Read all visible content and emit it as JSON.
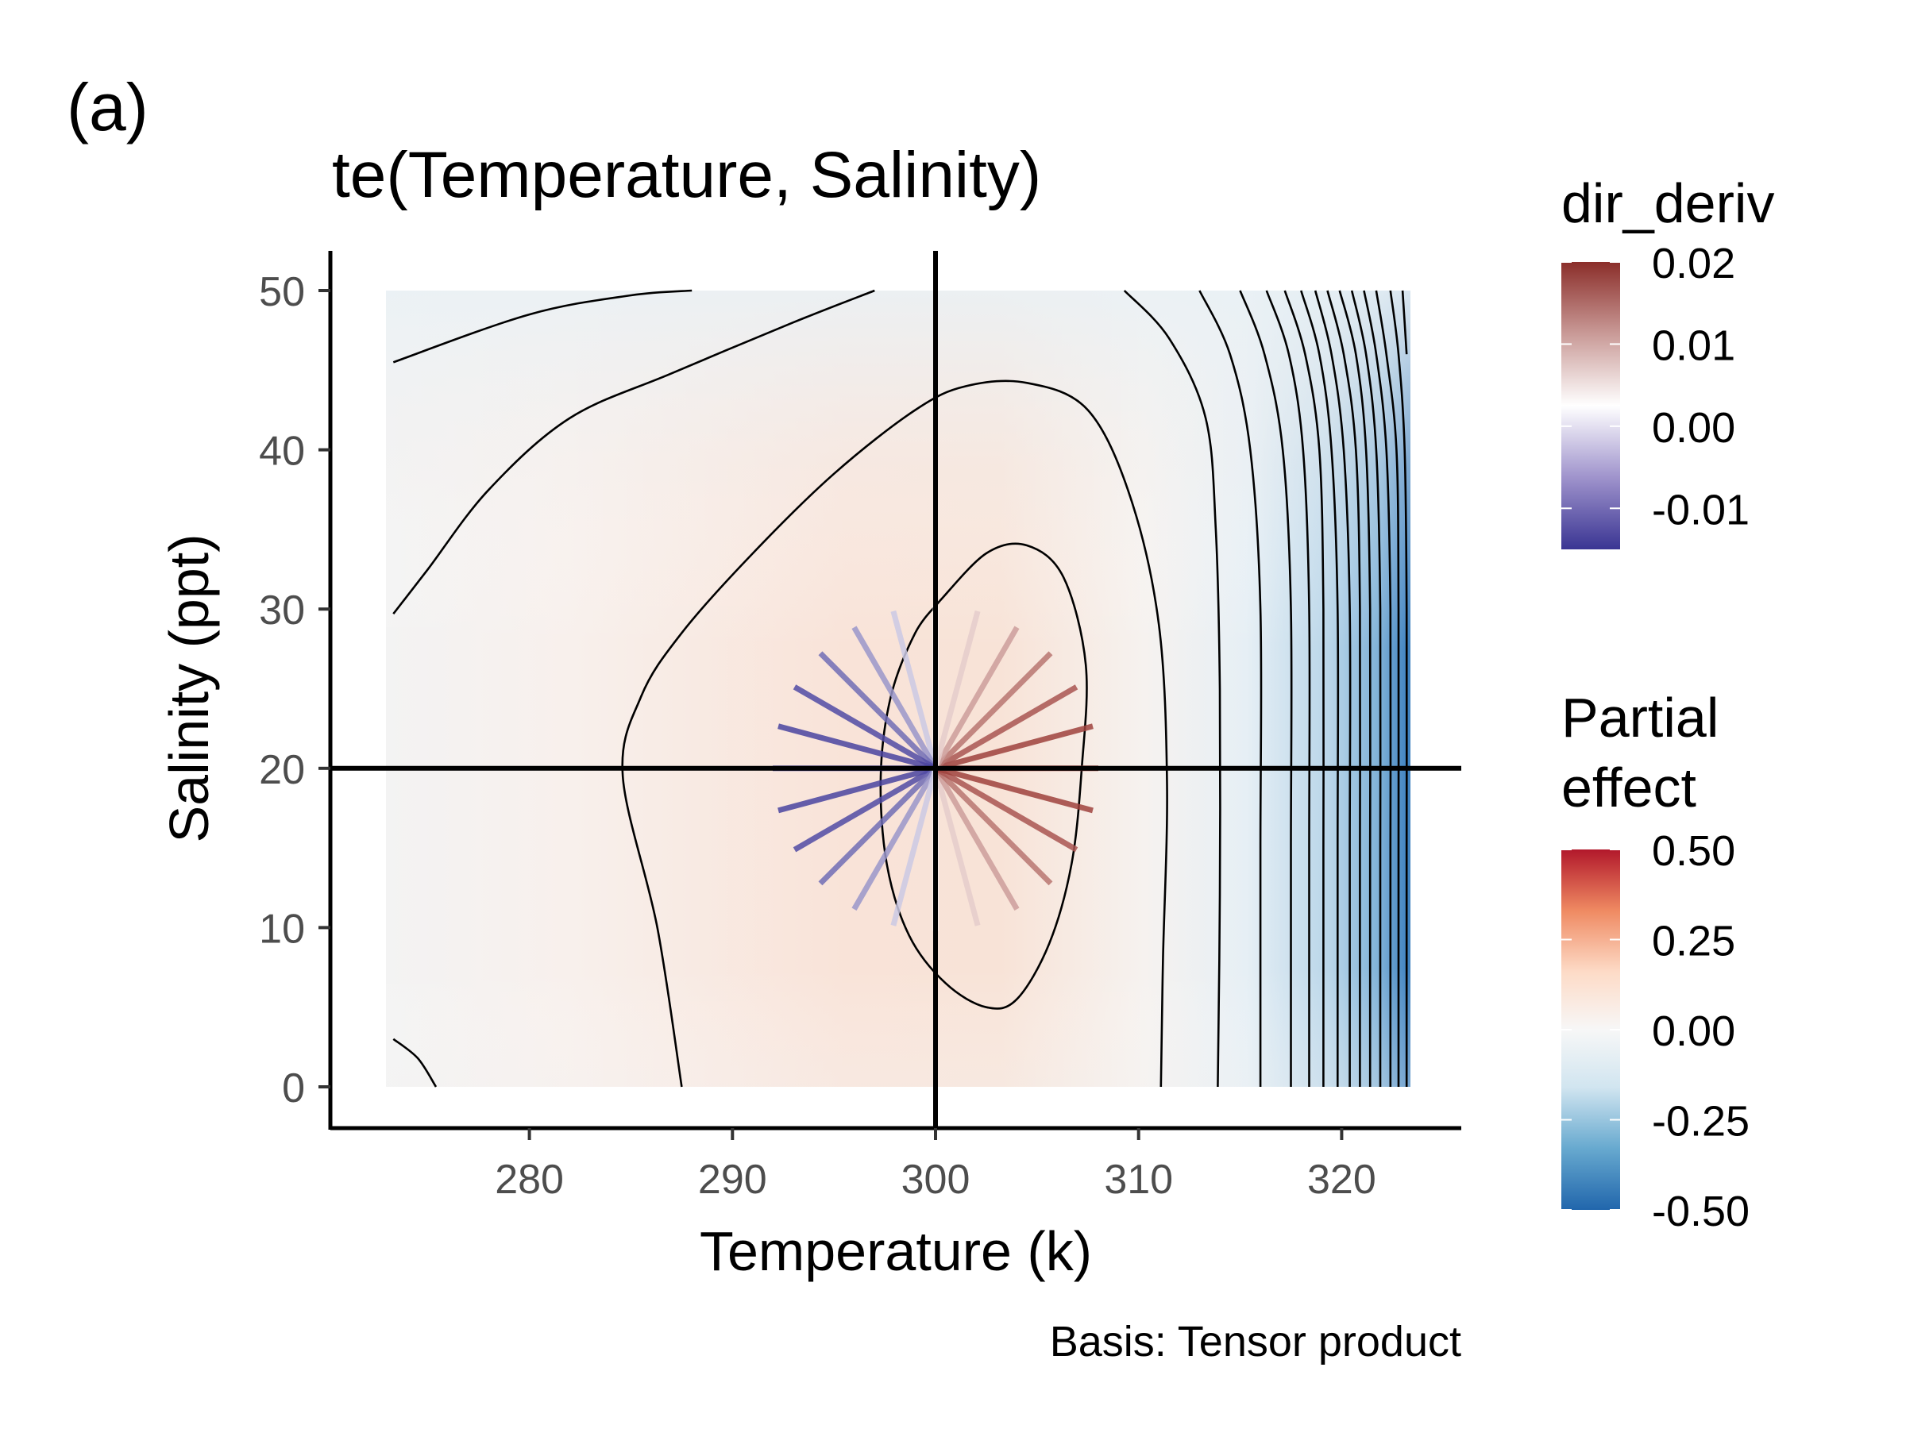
{
  "panel_tag": "(a)",
  "chart_data": {
    "type": "heatmap",
    "title": "te(Temperature, Salinity)",
    "xlabel": "Temperature (k)",
    "ylabel": "Salinity (ppt)",
    "caption": "Basis: Tensor product",
    "xlim": [
      273,
      323.5
    ],
    "ylim": [
      0,
      50
    ],
    "x_ticks": [
      "280",
      "290",
      "300",
      "310",
      "320"
    ],
    "y_ticks": [
      "0",
      "10",
      "20",
      "30",
      "40",
      "50"
    ],
    "reference_point": {
      "temperature": 300,
      "salinity": 20
    },
    "grid": false,
    "partial_effect_legend": {
      "title_line1": "Partial",
      "title_line2": "effect",
      "labels": [
        "0.50",
        "0.25",
        "0.00",
        "-0.25",
        "-0.50"
      ],
      "colors": [
        "#b2182b",
        "#ef8a62",
        "#fddbc7",
        "#f7f7f7",
        "#d1e5f0",
        "#67a9cf",
        "#2166ac"
      ],
      "range": [
        -0.5,
        0.5
      ]
    },
    "dir_deriv_legend": {
      "title": "dir_deriv",
      "labels": [
        "0.02",
        "0.01",
        "0.00",
        "-0.01"
      ],
      "colors": [
        "#8b2e2a",
        "#c99a97",
        "#ffffff",
        "#9f93cc",
        "#3a3593"
      ],
      "range": [
        -0.015,
        0.02
      ]
    },
    "directional_derivatives": [
      {
        "angle_deg": 0,
        "value": 0.02
      },
      {
        "angle_deg": 15,
        "value": 0.0193
      },
      {
        "angle_deg": 30,
        "value": 0.0173
      },
      {
        "angle_deg": 45,
        "value": 0.0141
      },
      {
        "angle_deg": 60,
        "value": 0.01
      },
      {
        "angle_deg": 75,
        "value": 0.0052
      },
      {
        "angle_deg": 90,
        "value": 0.0
      },
      {
        "angle_deg": 105,
        "value": -0.0052
      },
      {
        "angle_deg": 120,
        "value": -0.01
      },
      {
        "angle_deg": 135,
        "value": -0.0141
      },
      {
        "angle_deg": 150,
        "value": -0.0173
      },
      {
        "angle_deg": 165,
        "value": -0.0193
      },
      {
        "angle_deg": 180,
        "value": -0.02
      },
      {
        "angle_deg": 195,
        "value": -0.0193
      },
      {
        "angle_deg": 210,
        "value": -0.0173
      },
      {
        "angle_deg": 225,
        "value": -0.0141
      },
      {
        "angle_deg": 240,
        "value": -0.01
      },
      {
        "angle_deg": 255,
        "value": -0.0052
      },
      {
        "angle_deg": 270,
        "value": 0.0
      },
      {
        "angle_deg": 285,
        "value": 0.0052
      },
      {
        "angle_deg": 300,
        "value": 0.01
      },
      {
        "angle_deg": 315,
        "value": 0.0141
      },
      {
        "angle_deg": 330,
        "value": 0.0173
      },
      {
        "angle_deg": 345,
        "value": 0.0193
      }
    ],
    "contours": [
      {
        "points": [
          [
            273.3,
            45.5
          ],
          [
            280,
            48.5
          ],
          [
            285,
            49.7
          ],
          [
            288,
            50
          ]
        ]
      },
      {
        "points": [
          [
            297,
            50
          ],
          [
            293,
            48
          ],
          [
            287,
            44.8
          ],
          [
            282,
            42
          ],
          [
            278,
            37.5
          ],
          [
            275,
            32.5
          ],
          [
            273.3,
            29.7
          ]
        ]
      },
      {
        "points": [
          [
            273.3,
            3
          ],
          [
            274.5,
            1.8
          ],
          [
            275.4,
            0
          ]
        ]
      },
      {
        "points": [
          [
            287.5,
            0
          ],
          [
            286.3,
            10
          ],
          [
            284.6,
            19.5
          ],
          [
            285.5,
            24.5
          ],
          [
            287.5,
            28.5
          ],
          [
            291,
            33.5
          ],
          [
            295,
            38.5
          ],
          [
            299,
            42.5
          ],
          [
            301.5,
            44
          ],
          [
            304.5,
            44.2
          ],
          [
            307.5,
            42.5
          ],
          [
            309.6,
            37
          ],
          [
            311,
            29
          ],
          [
            311.4,
            19
          ],
          [
            311.2,
            8
          ],
          [
            311.1,
            0
          ]
        ]
      },
      {
        "points": [
          [
            300.2,
            30.5
          ],
          [
            302.5,
            33.5
          ],
          [
            304.5,
            34
          ],
          [
            306.3,
            32
          ],
          [
            307.4,
            26.5
          ],
          [
            307.2,
            20
          ],
          [
            306.7,
            14
          ],
          [
            305.6,
            9
          ],
          [
            304,
            5.5
          ],
          [
            302.5,
            5
          ],
          [
            300.5,
            6.5
          ],
          [
            298.7,
            9.5
          ],
          [
            297.6,
            14
          ],
          [
            297.3,
            19.5
          ],
          [
            297.8,
            24.5
          ],
          [
            299,
            28.5
          ],
          [
            300.2,
            30.5
          ]
        ]
      },
      {
        "points": [
          [
            309.3,
            50
          ],
          [
            311.5,
            47
          ],
          [
            313.3,
            42
          ],
          [
            313.8,
            35
          ],
          [
            314,
            25
          ],
          [
            314,
            12
          ],
          [
            313.9,
            0
          ]
        ]
      },
      {
        "points": [
          [
            313,
            50
          ],
          [
            314.5,
            46
          ],
          [
            315.5,
            40
          ],
          [
            316,
            30
          ],
          [
            316,
            15
          ],
          [
            316,
            0
          ]
        ]
      },
      {
        "points": [
          [
            315,
            50
          ],
          [
            316.2,
            46
          ],
          [
            317.1,
            40
          ],
          [
            317.5,
            30
          ],
          [
            317.5,
            15
          ],
          [
            317.5,
            0
          ]
        ]
      },
      {
        "points": [
          [
            316.3,
            50
          ],
          [
            317.4,
            46
          ],
          [
            318.1,
            40
          ],
          [
            318.4,
            30
          ],
          [
            318.4,
            15
          ],
          [
            318.4,
            0
          ]
        ]
      },
      {
        "points": [
          [
            317.2,
            50
          ],
          [
            318.2,
            46
          ],
          [
            318.9,
            40
          ],
          [
            319.1,
            30
          ],
          [
            319.1,
            15
          ],
          [
            319.1,
            0
          ]
        ]
      },
      {
        "points": [
          [
            318,
            50
          ],
          [
            318.9,
            46
          ],
          [
            319.5,
            40
          ],
          [
            319.8,
            30
          ],
          [
            319.8,
            15
          ],
          [
            319.8,
            0
          ]
        ]
      },
      {
        "points": [
          [
            318.7,
            50
          ],
          [
            319.5,
            46
          ],
          [
            320.1,
            40
          ],
          [
            320.4,
            30
          ],
          [
            320.4,
            15
          ],
          [
            320.4,
            0
          ]
        ]
      },
      {
        "points": [
          [
            319.3,
            50
          ],
          [
            320.1,
            46
          ],
          [
            320.7,
            40
          ],
          [
            320.9,
            30
          ],
          [
            320.9,
            15
          ],
          [
            320.9,
            0
          ]
        ]
      },
      {
        "points": [
          [
            319.9,
            50
          ],
          [
            320.7,
            46
          ],
          [
            321.2,
            40
          ],
          [
            321.4,
            30
          ],
          [
            321.4,
            15
          ],
          [
            321.4,
            0
          ]
        ]
      },
      {
        "points": [
          [
            320.5,
            50
          ],
          [
            321.2,
            46
          ],
          [
            321.7,
            40
          ],
          [
            321.9,
            30
          ],
          [
            321.9,
            15
          ],
          [
            321.9,
            0
          ]
        ]
      },
      {
        "points": [
          [
            321.1,
            50
          ],
          [
            321.7,
            46
          ],
          [
            322.2,
            40
          ],
          [
            322.4,
            30
          ],
          [
            322.4,
            15
          ],
          [
            322.4,
            0
          ]
        ]
      },
      {
        "points": [
          [
            321.7,
            50
          ],
          [
            322.2,
            46
          ],
          [
            322.7,
            40
          ],
          [
            322.8,
            30
          ],
          [
            322.8,
            15
          ],
          [
            322.8,
            0
          ]
        ]
      },
      {
        "points": [
          [
            322.4,
            50
          ],
          [
            322.8,
            46
          ],
          [
            323.1,
            40
          ],
          [
            323.2,
            30
          ],
          [
            323.2,
            15
          ],
          [
            323.2,
            0
          ]
        ]
      },
      {
        "points": [
          [
            323.0,
            50
          ],
          [
            323.2,
            46
          ]
        ]
      }
    ]
  }
}
